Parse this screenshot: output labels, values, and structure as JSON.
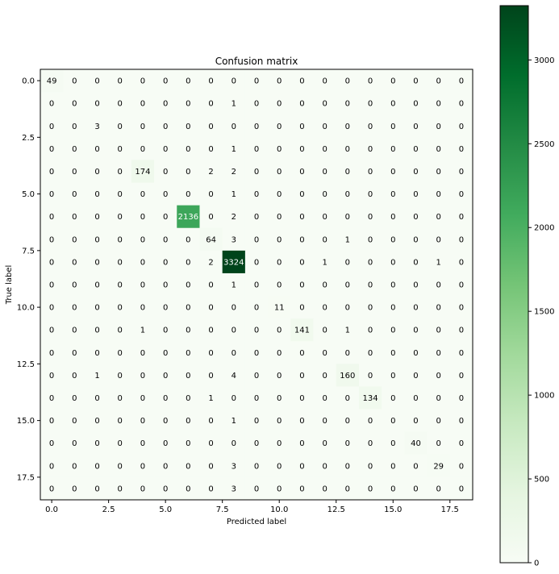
{
  "chart_data": {
    "type": "heatmap",
    "title": "Confusion matrix",
    "xlabel": "Predicted label",
    "ylabel": "True label",
    "matrix": [
      [
        49,
        0,
        0,
        0,
        0,
        0,
        0,
        0,
        0,
        0,
        0,
        0,
        0,
        0,
        0,
        0,
        0,
        0,
        0
      ],
      [
        0,
        0,
        0,
        0,
        0,
        0,
        0,
        0,
        1,
        0,
        0,
        0,
        0,
        0,
        0,
        0,
        0,
        0,
        0
      ],
      [
        0,
        0,
        3,
        0,
        0,
        0,
        0,
        0,
        0,
        0,
        0,
        0,
        0,
        0,
        0,
        0,
        0,
        0,
        0
      ],
      [
        0,
        0,
        0,
        0,
        0,
        0,
        0,
        0,
        1,
        0,
        0,
        0,
        0,
        0,
        0,
        0,
        0,
        0,
        0
      ],
      [
        0,
        0,
        0,
        0,
        174,
        0,
        0,
        2,
        2,
        0,
        0,
        0,
        0,
        0,
        0,
        0,
        0,
        0,
        0
      ],
      [
        0,
        0,
        0,
        0,
        0,
        0,
        0,
        0,
        1,
        0,
        0,
        0,
        0,
        0,
        0,
        0,
        0,
        0,
        0
      ],
      [
        0,
        0,
        0,
        0,
        0,
        0,
        2136,
        0,
        2,
        0,
        0,
        0,
        0,
        0,
        0,
        0,
        0,
        0,
        0
      ],
      [
        0,
        0,
        0,
        0,
        0,
        0,
        0,
        64,
        3,
        0,
        0,
        0,
        0,
        1,
        0,
        0,
        0,
        0,
        0
      ],
      [
        0,
        0,
        0,
        0,
        0,
        0,
        0,
        2,
        3324,
        0,
        0,
        0,
        1,
        0,
        0,
        0,
        0,
        1,
        0
      ],
      [
        0,
        0,
        0,
        0,
        0,
        0,
        0,
        0,
        1,
        0,
        0,
        0,
        0,
        0,
        0,
        0,
        0,
        0,
        0
      ],
      [
        0,
        0,
        0,
        0,
        0,
        0,
        0,
        0,
        0,
        0,
        11,
        0,
        0,
        0,
        0,
        0,
        0,
        0,
        0
      ],
      [
        0,
        0,
        0,
        0,
        1,
        0,
        0,
        0,
        0,
        0,
        0,
        141,
        0,
        1,
        0,
        0,
        0,
        0,
        0
      ],
      [
        0,
        0,
        0,
        0,
        0,
        0,
        0,
        0,
        0,
        0,
        0,
        0,
        0,
        0,
        0,
        0,
        0,
        0,
        0
      ],
      [
        0,
        0,
        1,
        0,
        0,
        0,
        0,
        0,
        4,
        0,
        0,
        0,
        0,
        160,
        0,
        0,
        0,
        0,
        0
      ],
      [
        0,
        0,
        0,
        0,
        0,
        0,
        0,
        1,
        0,
        0,
        0,
        0,
        0,
        0,
        134,
        0,
        0,
        0,
        0
      ],
      [
        0,
        0,
        0,
        0,
        0,
        0,
        0,
        0,
        1,
        0,
        0,
        0,
        0,
        0,
        0,
        0,
        0,
        0,
        0
      ],
      [
        0,
        0,
        0,
        0,
        0,
        0,
        0,
        0,
        0,
        0,
        0,
        0,
        0,
        0,
        0,
        0,
        40,
        0,
        0
      ],
      [
        0,
        0,
        0,
        0,
        0,
        0,
        0,
        0,
        3,
        0,
        0,
        0,
        0,
        0,
        0,
        0,
        0,
        29,
        0
      ],
      [
        0,
        0,
        0,
        0,
        0,
        0,
        0,
        0,
        3,
        0,
        0,
        0,
        0,
        0,
        0,
        0,
        0,
        0,
        0
      ]
    ],
    "x_ticks": [
      0.0,
      2.5,
      5.0,
      7.5,
      10.0,
      12.5,
      15.0,
      17.5
    ],
    "x_tick_labels": [
      "0.0",
      "2.5",
      "5.0",
      "7.5",
      "10.0",
      "12.5",
      "15.0",
      "17.5"
    ],
    "y_ticks": [
      0.0,
      2.5,
      5.0,
      7.5,
      10.0,
      12.5,
      15.0,
      17.5
    ],
    "y_tick_labels": [
      "0.0",
      "2.5",
      "5.0",
      "7.5",
      "10.0",
      "12.5",
      "15.0",
      "17.5"
    ],
    "xlim": [
      -0.5,
      18.5
    ],
    "ylim": [
      18.5,
      -0.5
    ],
    "colormap": "Greens",
    "colorbar": {
      "range": [
        0,
        3324
      ],
      "ticks": [
        0,
        500,
        1000,
        1500,
        2000,
        2500,
        3000
      ],
      "tick_labels": [
        "0",
        "500",
        "1000",
        "1500",
        "2000",
        "2500",
        "3000"
      ]
    },
    "grid": false
  }
}
